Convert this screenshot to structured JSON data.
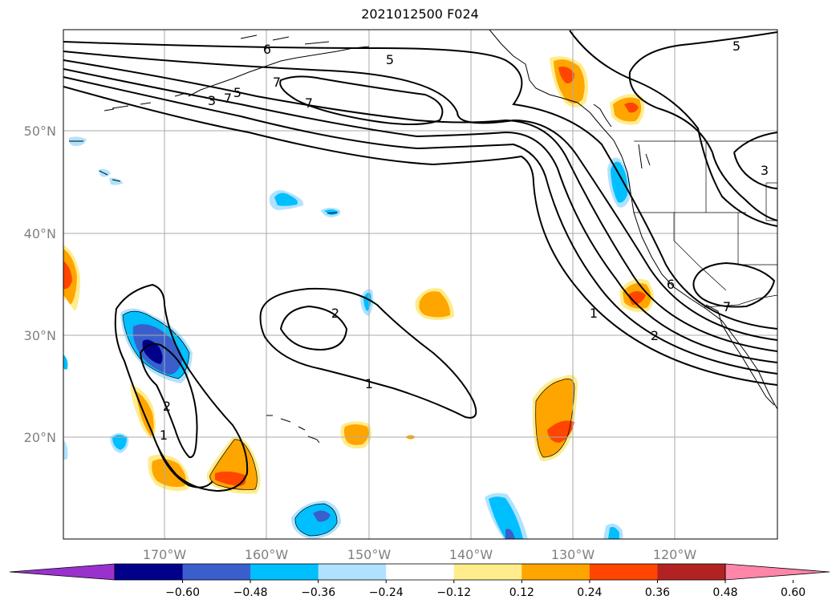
{
  "title": "2021012500 F024",
  "map": {
    "lat_labels": [
      "50°N",
      "40°N",
      "30°N",
      "20°N"
    ],
    "lon_labels": [
      "170°W",
      "160°W",
      "150°W",
      "140°W",
      "130°W",
      "120°W"
    ],
    "grid": true,
    "colors": {
      "coast": "#000000",
      "grid": "#aaaaaa",
      "contour": "#000000"
    },
    "contour_labels": [
      "6",
      "5",
      "5",
      "7",
      "7",
      "3",
      "7",
      "5",
      "2",
      "1",
      "2",
      "1",
      "1",
      "2",
      "6",
      "7",
      "3"
    ]
  },
  "colorbar": {
    "ticks": [
      "−0.60",
      "−0.48",
      "−0.36",
      "−0.24",
      "−0.12",
      "0.12",
      "0.24",
      "0.36",
      "0.48",
      "0.60"
    ],
    "colors": [
      "#9932cc",
      "#00008b",
      "#3a5fcd",
      "#00bfff",
      "#b0e2ff",
      "#ffffff",
      "#ffec8b",
      "#ffa500",
      "#ff4500",
      "#b22222",
      "#ff86a8"
    ]
  }
}
